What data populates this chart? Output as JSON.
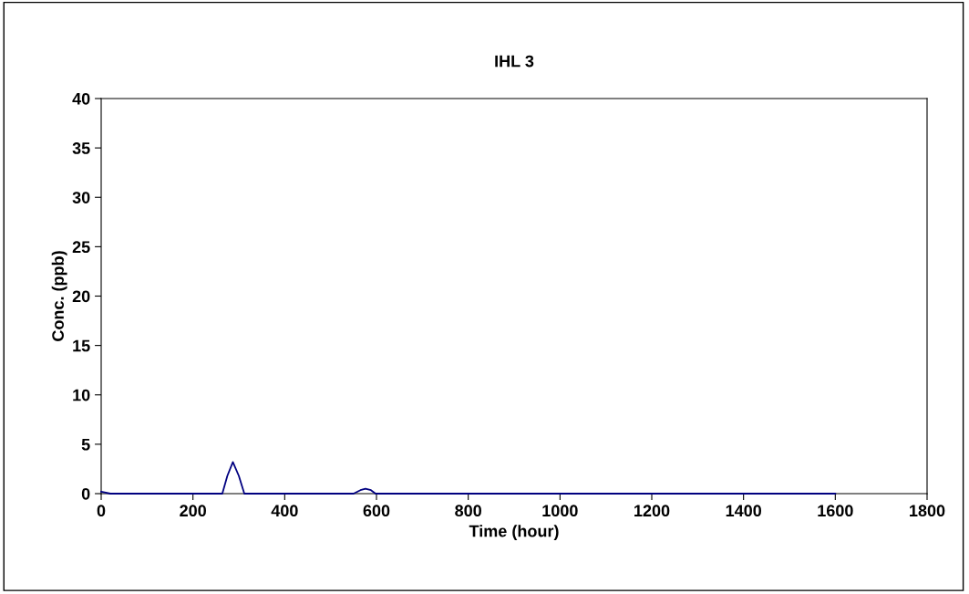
{
  "chart_data": {
    "type": "line",
    "title": "IHL 3",
    "xlabel": "Time (hour)",
    "ylabel": "Conc. (ppb)",
    "series": [
      {
        "color": "#000080",
        "x": [
          0,
          20,
          264,
          275,
          287,
          300,
          312,
          550,
          565,
          576,
          588,
          598,
          1600
        ],
        "values": [
          0.2,
          0,
          0,
          1.8,
          3.2,
          1.8,
          0,
          0,
          0.35,
          0.5,
          0.35,
          0,
          0
        ]
      }
    ],
    "xlim": [
      0,
      1800
    ],
    "xticks": [
      0,
      200,
      400,
      600,
      800,
      1000,
      1200,
      1400,
      1600,
      1800
    ],
    "ylim": [
      0,
      40
    ],
    "yticks": [
      0,
      5,
      10,
      15,
      20,
      25,
      30,
      35,
      40
    ],
    "grid": false,
    "marker": "none",
    "line_style": "solid"
  }
}
